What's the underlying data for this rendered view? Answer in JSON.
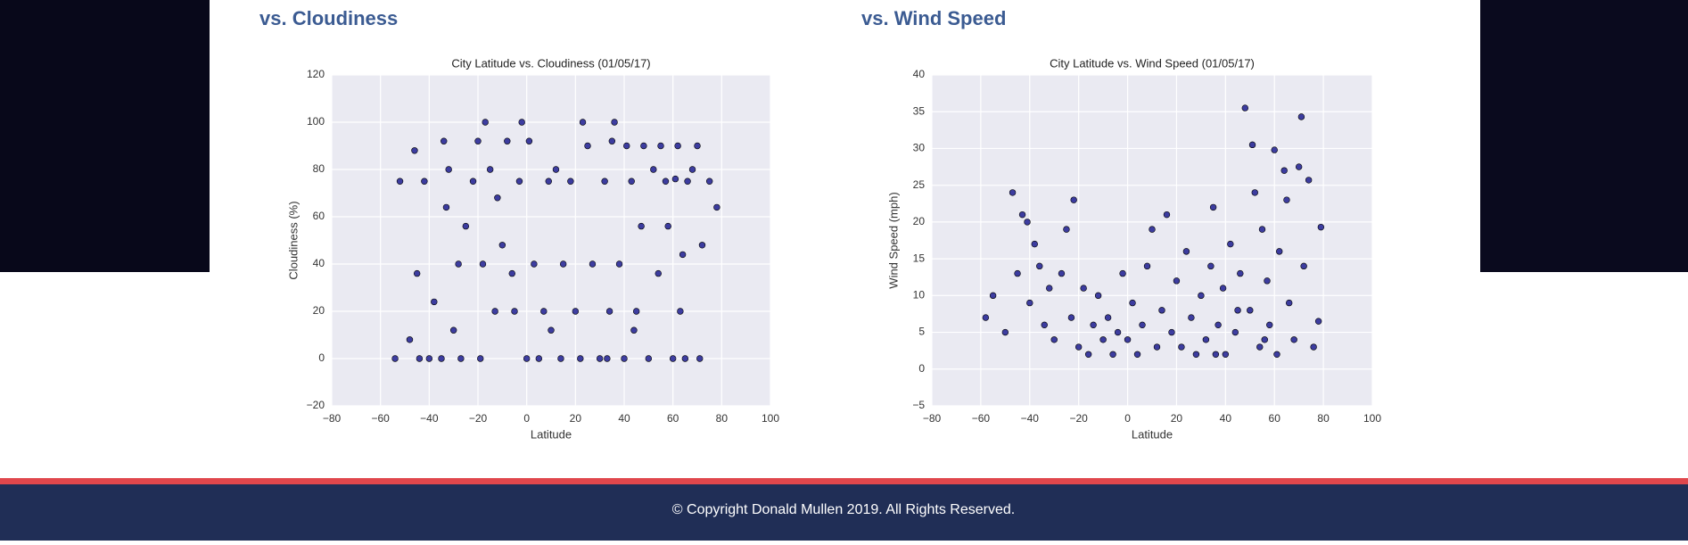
{
  "headings": [
    "vs. Cloudiness",
    "vs. Wind Speed"
  ],
  "footer": "© Copyright Donald Mullen 2019. All Rights Reserved.",
  "chart_data": [
    {
      "type": "scatter",
      "title": "City Latitude vs. Cloudiness (01/05/17)",
      "x_label": "Latitude",
      "y_label": "Cloudiness (%)",
      "color": "#10108a",
      "grid": true,
      "xlim": [
        -80,
        100
      ],
      "xticks": [
        {
          "value": -80,
          "label": "−80"
        },
        {
          "value": -60,
          "label": "−60"
        },
        {
          "value": -40,
          "label": "−40"
        },
        {
          "value": -20,
          "label": "−20"
        },
        0,
        20,
        40,
        60,
        80,
        100
      ],
      "ylim": [
        -20,
        120
      ],
      "yticks": [
        {
          "value": -20,
          "label": "−20"
        },
        0,
        20,
        40,
        60,
        80,
        100,
        120
      ],
      "x": [
        -54,
        -52,
        -46,
        -45,
        -44,
        -42,
        -40,
        -38,
        -35,
        -34,
        -33,
        -32,
        -30,
        -28,
        -27,
        -25,
        -22,
        -20,
        -19,
        -18,
        -17,
        -15,
        -13,
        -12,
        -10,
        -8,
        -6,
        -5,
        -3,
        -2,
        0,
        1,
        3,
        5,
        7,
        9,
        10,
        12,
        14,
        15,
        18,
        20,
        22,
        23,
        25,
        27,
        30,
        32,
        34,
        35,
        36,
        38,
        40,
        41,
        43,
        45,
        47,
        48,
        50,
        52,
        54,
        55,
        57,
        58,
        60,
        61,
        62,
        63,
        64,
        65,
        66,
        68,
        70,
        71,
        72,
        75,
        78,
        -48,
        33,
        44
      ],
      "values": [
        0,
        75,
        88,
        36,
        0,
        75,
        0,
        24,
        0,
        92,
        64,
        80,
        12,
        40,
        0,
        56,
        75,
        92,
        0,
        40,
        100,
        80,
        20,
        68,
        48,
        92,
        36,
        20,
        75,
        100,
        0,
        92,
        40,
        0,
        20,
        75,
        12,
        80,
        0,
        40,
        75,
        20,
        0,
        100,
        90,
        40,
        0,
        75,
        20,
        92,
        100,
        40,
        0,
        90,
        75,
        20,
        56,
        90,
        0,
        80,
        36,
        90,
        75,
        56,
        0,
        76,
        90,
        20,
        44,
        0,
        75,
        80,
        90,
        0,
        48,
        75,
        64,
        8,
        0,
        12
      ]
    },
    {
      "type": "scatter",
      "title": "City Latitude vs. Wind Speed (01/05/17)",
      "x_label": "Latitude",
      "y_label": "Wind Speed (mph)",
      "color": "#10108a",
      "grid": true,
      "xlim": [
        -80,
        100
      ],
      "xticks": [
        {
          "value": -80,
          "label": "−80"
        },
        {
          "value": -60,
          "label": "−60"
        },
        {
          "value": -40,
          "label": "−40"
        },
        {
          "value": -20,
          "label": "−20"
        },
        0,
        20,
        40,
        60,
        80,
        100
      ],
      "ylim": [
        -5,
        40
      ],
      "yticks": [
        {
          "value": -5,
          "label": "−5"
        },
        0,
        5,
        10,
        15,
        20,
        25,
        30,
        35,
        40
      ],
      "x": [
        -58,
        -55,
        -50,
        -47,
        -45,
        -43,
        -41,
        -40,
        -38,
        -36,
        -34,
        -32,
        -30,
        -27,
        -25,
        -23,
        -22,
        -20,
        -18,
        -16,
        -14,
        -12,
        -10,
        -8,
        -6,
        -4,
        -2,
        0,
        2,
        4,
        6,
        8,
        10,
        12,
        14,
        16,
        18,
        20,
        22,
        24,
        26,
        28,
        30,
        32,
        34,
        35,
        37,
        39,
        40,
        42,
        44,
        46,
        48,
        50,
        51,
        52,
        54,
        55,
        57,
        58,
        60,
        61,
        62,
        64,
        65,
        66,
        68,
        70,
        71,
        72,
        74,
        76,
        78,
        79,
        36,
        45,
        56
      ],
      "values": [
        7,
        10,
        5,
        24,
        13,
        21,
        20,
        9,
        17,
        14,
        6,
        11,
        4,
        13,
        19,
        7,
        23,
        3,
        11,
        2,
        6,
        10,
        4,
        7,
        2,
        5,
        13,
        4,
        9,
        2,
        6,
        14,
        19,
        3,
        8,
        21,
        5,
        12,
        3,
        16,
        7,
        2,
        10,
        4,
        14,
        22,
        6,
        11,
        2,
        17,
        5,
        13,
        35.5,
        8,
        30.5,
        24,
        3,
        19,
        12,
        6,
        29.8,
        2,
        16,
        27,
        23,
        9,
        4,
        27.5,
        34.3,
        14,
        25.7,
        3,
        6.5,
        19.3,
        2,
        8,
        4
      ]
    }
  ]
}
